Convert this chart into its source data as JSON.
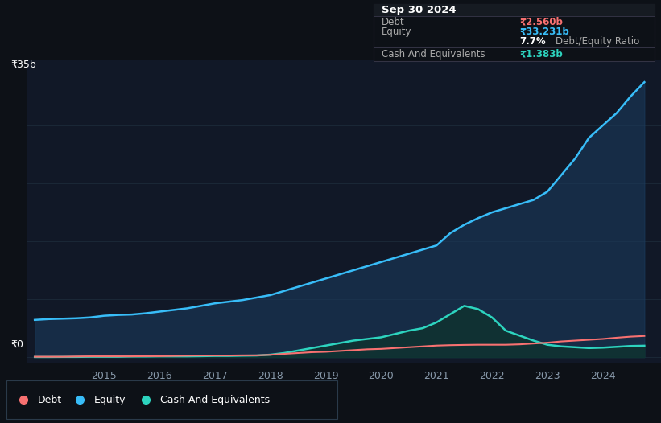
{
  "background_color": "#0d1117",
  "plot_bg_color": "#111827",
  "grid_color": "#1c2a3a",
  "ylim_max": 35,
  "ylabel_top": "₹35b",
  "ylabel_zero": "₹0",
  "equity_color": "#38bdf8",
  "equity_fill_color": "#1a3a5c",
  "debt_color": "#f87171",
  "cash_color": "#2dd4bf",
  "cash_fill_color": "#0f3330",
  "equity_data_x": [
    2013.75,
    2014.0,
    2014.25,
    2014.5,
    2014.75,
    2015.0,
    2015.25,
    2015.5,
    2015.75,
    2016.0,
    2016.25,
    2016.5,
    2016.75,
    2017.0,
    2017.25,
    2017.5,
    2017.75,
    2018.0,
    2018.25,
    2018.5,
    2018.75,
    2019.0,
    2019.25,
    2019.5,
    2019.75,
    2020.0,
    2020.25,
    2020.5,
    2020.75,
    2021.0,
    2021.25,
    2021.5,
    2021.75,
    2022.0,
    2022.25,
    2022.5,
    2022.75,
    2023.0,
    2023.25,
    2023.5,
    2023.75,
    2024.0,
    2024.25,
    2024.5,
    2024.75
  ],
  "equity_data_y": [
    4.5,
    4.6,
    4.65,
    4.7,
    4.8,
    5.0,
    5.1,
    5.15,
    5.3,
    5.5,
    5.7,
    5.9,
    6.2,
    6.5,
    6.7,
    6.9,
    7.2,
    7.5,
    8.0,
    8.5,
    9.0,
    9.5,
    10.0,
    10.5,
    11.0,
    11.5,
    12.0,
    12.5,
    13.0,
    13.5,
    15.0,
    16.0,
    16.8,
    17.5,
    18.0,
    18.5,
    19.0,
    20.0,
    22.0,
    24.0,
    26.5,
    28.0,
    29.5,
    31.5,
    33.231
  ],
  "debt_data_x": [
    2013.75,
    2014.0,
    2014.25,
    2014.5,
    2014.75,
    2015.0,
    2015.25,
    2015.5,
    2015.75,
    2016.0,
    2016.25,
    2016.5,
    2016.75,
    2017.0,
    2017.25,
    2017.5,
    2017.75,
    2018.0,
    2018.25,
    2018.5,
    2018.75,
    2019.0,
    2019.25,
    2019.5,
    2019.75,
    2020.0,
    2020.25,
    2020.5,
    2020.75,
    2021.0,
    2021.25,
    2021.5,
    2021.75,
    2022.0,
    2022.25,
    2022.5,
    2022.75,
    2023.0,
    2023.25,
    2023.5,
    2023.75,
    2024.0,
    2024.25,
    2024.5,
    2024.75
  ],
  "debt_data_y": [
    0.05,
    0.05,
    0.05,
    0.08,
    0.1,
    0.1,
    0.1,
    0.1,
    0.12,
    0.12,
    0.15,
    0.18,
    0.2,
    0.2,
    0.2,
    0.22,
    0.22,
    0.28,
    0.4,
    0.5,
    0.6,
    0.65,
    0.75,
    0.85,
    0.95,
    1.0,
    1.1,
    1.2,
    1.3,
    1.4,
    1.45,
    1.48,
    1.5,
    1.5,
    1.5,
    1.55,
    1.65,
    1.75,
    1.9,
    2.0,
    2.1,
    2.2,
    2.35,
    2.48,
    2.56
  ],
  "cash_data_x": [
    2013.75,
    2014.0,
    2014.25,
    2014.5,
    2014.75,
    2015.0,
    2015.25,
    2015.5,
    2015.75,
    2016.0,
    2016.25,
    2016.5,
    2016.75,
    2017.0,
    2017.25,
    2017.5,
    2017.75,
    2018.0,
    2018.25,
    2018.5,
    2018.75,
    2019.0,
    2019.25,
    2019.5,
    2019.75,
    2020.0,
    2020.25,
    2020.5,
    2020.75,
    2021.0,
    2021.25,
    2021.5,
    2021.75,
    2022.0,
    2022.25,
    2022.5,
    2022.75,
    2023.0,
    2023.25,
    2023.5,
    2023.75,
    2024.0,
    2024.25,
    2024.5,
    2024.75
  ],
  "cash_data_y": [
    0.02,
    0.02,
    0.03,
    0.03,
    0.05,
    0.05,
    0.05,
    0.08,
    0.08,
    0.1,
    0.1,
    0.1,
    0.12,
    0.15,
    0.15,
    0.18,
    0.2,
    0.3,
    0.5,
    0.8,
    1.1,
    1.4,
    1.7,
    2.0,
    2.2,
    2.4,
    2.8,
    3.2,
    3.5,
    4.2,
    5.2,
    6.2,
    5.8,
    4.8,
    3.2,
    2.6,
    2.0,
    1.5,
    1.3,
    1.2,
    1.1,
    1.15,
    1.25,
    1.35,
    1.383
  ],
  "x_ticks": [
    2015,
    2016,
    2017,
    2018,
    2019,
    2020,
    2021,
    2022,
    2023,
    2024
  ],
  "x_tick_labels": [
    "2015",
    "2016",
    "2017",
    "2018",
    "2019",
    "2020",
    "2021",
    "2022",
    "2023",
    "2024"
  ],
  "tooltip": {
    "date": "Sep 30 2024",
    "debt_label": "Debt",
    "debt_value": "₹2.560b",
    "equity_label": "Equity",
    "equity_value": "₹33.231b",
    "ratio_value": "7.7%",
    "ratio_label": "Debt/Equity Ratio",
    "cash_label": "Cash And Equivalents",
    "cash_value": "₹1.383b"
  },
  "legend_items": [
    {
      "label": "Debt",
      "color": "#f87171"
    },
    {
      "label": "Equity",
      "color": "#38bdf8"
    },
    {
      "label": "Cash And Equivalents",
      "color": "#2dd4bf"
    }
  ]
}
